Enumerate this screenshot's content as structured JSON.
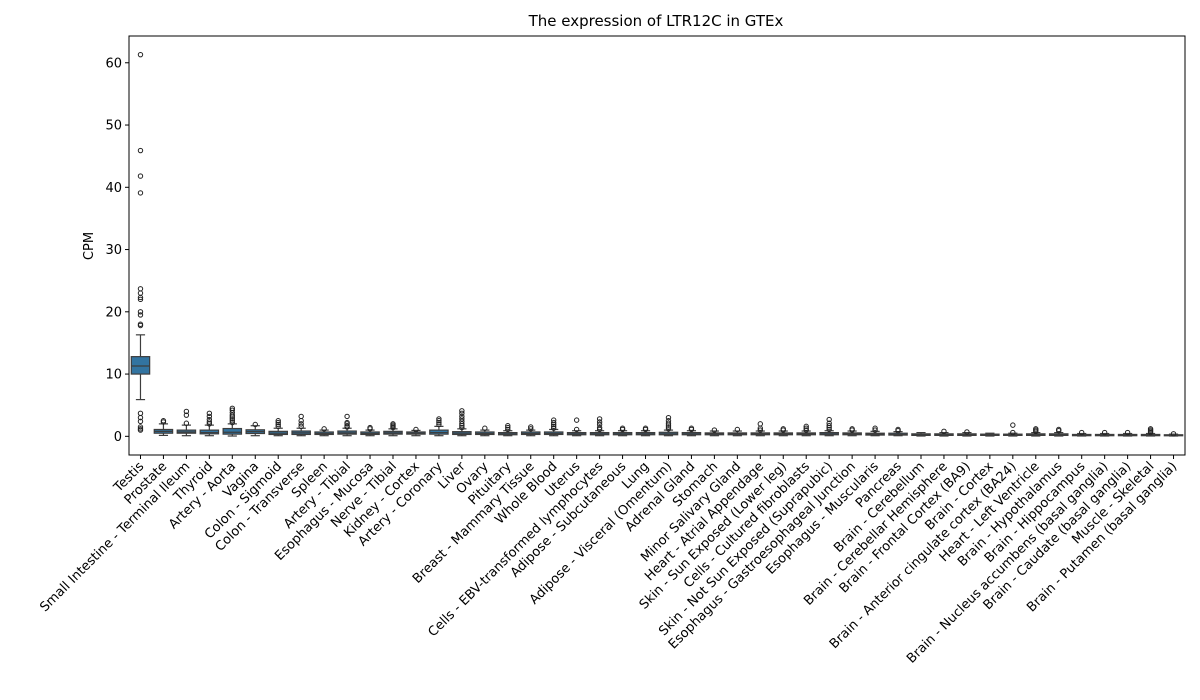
{
  "chart_data": {
    "type": "box",
    "title": "The expression of LTR12C in GTEx",
    "xlabel": "",
    "ylabel": "CPM",
    "ylim": [
      -3,
      64.3
    ],
    "yticks": [
      0,
      10,
      20,
      30,
      40,
      50,
      60
    ],
    "box_color": "#3274a1",
    "grid": false,
    "categories": [
      "Testis",
      "Prostate",
      "Small Intestine - Terminal Ileum",
      "Thyroid",
      "Artery - Aorta",
      "Vagina",
      "Colon - Sigmoid",
      "Colon - Transverse",
      "Spleen",
      "Artery - Tibial",
      "Esophagus - Mucosa",
      "Nerve - Tibial",
      "Kidney - Cortex",
      "Artery - Coronary",
      "Liver",
      "Ovary",
      "Pituitary",
      "Breast - Mammary Tissue",
      "Whole Blood",
      "Uterus",
      "Cells - EBV-transformed lymphocytes",
      "Adipose - Subcutaneous",
      "Lung",
      "Adipose - Visceral (Omentum)",
      "Adrenal Gland",
      "Stomach",
      "Minor Salivary Gland",
      "Heart - Atrial Appendage",
      "Skin - Sun Exposed (Lower leg)",
      "Cells - Cultured fibroblasts",
      "Skin - Not Sun Exposed (Suprapubic)",
      "Esophagus - Gastroesophageal Junction",
      "Esophagus - Muscularis",
      "Pancreas",
      "Brain - Cerebellum",
      "Brain - Cerebellar Hemisphere",
      "Brain - Frontal Cortex (BA9)",
      "Brain - Cortex",
      "Brain - Anterior cingulate cortex (BA24)",
      "Heart - Left Ventricle",
      "Brain - Hypothalamus",
      "Brain - Hippocampus",
      "Brain - Nucleus accumbens (basal ganglia)",
      "Brain - Caudate (basal ganglia)",
      "Muscle - Skeletal",
      "Brain - Putamen (basal ganglia)"
    ],
    "boxes": [
      {
        "whislo": 5.9,
        "q1": 10.0,
        "med": 11.3,
        "q3": 12.8,
        "whishi": 16.3,
        "fliers": [
          61.3,
          45.9,
          41.8,
          39.1,
          23.7,
          23.0,
          22.3,
          22.0,
          20.0,
          19.5,
          18.0,
          17.8,
          3.7,
          3.0,
          2.4,
          1.5,
          1.2,
          1.0
        ]
      },
      {
        "whislo": 0.15,
        "q1": 0.5,
        "med": 0.8,
        "q3": 1.1,
        "whishi": 2.0,
        "fliers": [
          2.3,
          2.5
        ]
      },
      {
        "whislo": 0.1,
        "q1": 0.5,
        "med": 0.7,
        "q3": 1.0,
        "whishi": 1.8,
        "fliers": [
          2.1,
          3.4,
          4.0
        ]
      },
      {
        "whislo": 0.1,
        "q1": 0.4,
        "med": 0.6,
        "q3": 1.0,
        "whishi": 1.8,
        "fliers": [
          2.0,
          2.3,
          2.7,
          3.2,
          3.7
        ]
      },
      {
        "whislo": 0.05,
        "q1": 0.35,
        "med": 0.65,
        "q3": 1.25,
        "whishi": 2.0,
        "fliers": [
          2.2,
          2.5,
          2.8,
          3.1,
          3.4,
          3.8,
          4.2,
          4.5
        ]
      },
      {
        "whislo": 0.1,
        "q1": 0.45,
        "med": 0.75,
        "q3": 1.05,
        "whishi": 1.7,
        "fliers": [
          1.9
        ]
      },
      {
        "whislo": 0.1,
        "q1": 0.3,
        "med": 0.5,
        "q3": 0.8,
        "whishi": 1.3,
        "fliers": [
          1.6,
          1.9,
          2.2,
          2.5
        ]
      },
      {
        "whislo": 0.1,
        "q1": 0.3,
        "med": 0.55,
        "q3": 0.85,
        "whishi": 1.3,
        "fliers": [
          1.6,
          2.0,
          2.5,
          3.2
        ]
      },
      {
        "whislo": 0.1,
        "q1": 0.3,
        "med": 0.45,
        "q3": 0.7,
        "whishi": 1.0,
        "fliers": [
          1.2
        ]
      },
      {
        "whislo": 0.1,
        "q1": 0.35,
        "med": 0.55,
        "q3": 0.85,
        "whishi": 1.3,
        "fliers": [
          1.5,
          1.7,
          2.0,
          2.2,
          3.2
        ]
      },
      {
        "whislo": 0.1,
        "q1": 0.3,
        "med": 0.45,
        "q3": 0.7,
        "whishi": 1.0,
        "fliers": [
          1.2,
          1.4
        ]
      },
      {
        "whislo": 0.1,
        "q1": 0.35,
        "med": 0.55,
        "q3": 0.8,
        "whishi": 1.2,
        "fliers": [
          1.4,
          1.6,
          1.8,
          2.0
        ]
      },
      {
        "whislo": 0.1,
        "q1": 0.35,
        "med": 0.5,
        "q3": 0.7,
        "whishi": 0.95,
        "fliers": [
          1.1
        ]
      },
      {
        "whislo": 0.1,
        "q1": 0.35,
        "med": 0.6,
        "q3": 1.0,
        "whishi": 1.6,
        "fliers": [
          1.9,
          2.2,
          2.5,
          2.8
        ]
      },
      {
        "whislo": 0.1,
        "q1": 0.3,
        "med": 0.5,
        "q3": 0.75,
        "whishi": 1.2,
        "fliers": [
          1.4,
          1.7,
          2.0,
          2.4,
          2.8,
          3.2,
          3.7,
          4.1
        ]
      },
      {
        "whislo": 0.1,
        "q1": 0.3,
        "med": 0.45,
        "q3": 0.7,
        "whishi": 1.0,
        "fliers": [
          1.3
        ]
      },
      {
        "whislo": 0.1,
        "q1": 0.25,
        "med": 0.4,
        "q3": 0.6,
        "whishi": 0.9,
        "fliers": [
          1.1,
          1.4,
          1.7
        ]
      },
      {
        "whislo": 0.1,
        "q1": 0.3,
        "med": 0.45,
        "q3": 0.7,
        "whishi": 1.0,
        "fliers": [
          1.2,
          1.5
        ]
      },
      {
        "whislo": 0.1,
        "q1": 0.3,
        "med": 0.45,
        "q3": 0.7,
        "whishi": 1.1,
        "fliers": [
          1.3,
          1.6,
          1.9,
          2.2,
          2.6
        ]
      },
      {
        "whislo": 0.1,
        "q1": 0.25,
        "med": 0.4,
        "q3": 0.6,
        "whishi": 0.9,
        "fliers": [
          1.1,
          2.6
        ]
      },
      {
        "whislo": 0.1,
        "q1": 0.25,
        "med": 0.4,
        "q3": 0.6,
        "whishi": 0.9,
        "fliers": [
          1.1,
          1.4,
          1.9,
          2.3,
          2.8
        ]
      },
      {
        "whislo": 0.1,
        "q1": 0.25,
        "med": 0.4,
        "q3": 0.6,
        "whishi": 0.9,
        "fliers": [
          1.1,
          1.3
        ]
      },
      {
        "whislo": 0.1,
        "q1": 0.25,
        "med": 0.4,
        "q3": 0.6,
        "whishi": 0.9,
        "fliers": [
          1.1,
          1.3
        ]
      },
      {
        "whislo": 0.1,
        "q1": 0.25,
        "med": 0.4,
        "q3": 0.65,
        "whishi": 1.0,
        "fliers": [
          1.2,
          1.5,
          1.8,
          2.1,
          2.5,
          3.0
        ]
      },
      {
        "whislo": 0.1,
        "q1": 0.25,
        "med": 0.4,
        "q3": 0.6,
        "whishi": 0.9,
        "fliers": [
          1.1,
          1.3
        ]
      },
      {
        "whislo": 0.1,
        "q1": 0.25,
        "med": 0.4,
        "q3": 0.55,
        "whishi": 0.85,
        "fliers": [
          1.0
        ]
      },
      {
        "whislo": 0.1,
        "q1": 0.25,
        "med": 0.4,
        "q3": 0.55,
        "whishi": 0.85,
        "fliers": [
          1.1
        ]
      },
      {
        "whislo": 0.1,
        "q1": 0.25,
        "med": 0.35,
        "q3": 0.55,
        "whishi": 0.85,
        "fliers": [
          1.0,
          1.3,
          2.0
        ]
      },
      {
        "whislo": 0.1,
        "q1": 0.25,
        "med": 0.35,
        "q3": 0.55,
        "whishi": 0.85,
        "fliers": [
          1.0,
          1.2
        ]
      },
      {
        "whislo": 0.1,
        "q1": 0.25,
        "med": 0.35,
        "q3": 0.55,
        "whishi": 0.85,
        "fliers": [
          1.0,
          1.3,
          1.6
        ]
      },
      {
        "whislo": 0.1,
        "q1": 0.25,
        "med": 0.4,
        "q3": 0.6,
        "whishi": 0.9,
        "fliers": [
          1.1,
          1.4,
          1.7,
          2.1,
          2.7
        ]
      },
      {
        "whislo": 0.1,
        "q1": 0.25,
        "med": 0.35,
        "q3": 0.55,
        "whishi": 0.85,
        "fliers": [
          1.0,
          1.2
        ]
      },
      {
        "whislo": 0.1,
        "q1": 0.2,
        "med": 0.35,
        "q3": 0.5,
        "whishi": 0.8,
        "fliers": [
          1.0,
          1.3
        ]
      },
      {
        "whislo": 0.1,
        "q1": 0.2,
        "med": 0.3,
        "q3": 0.5,
        "whishi": 0.75,
        "fliers": [
          0.9,
          1.1
        ]
      },
      {
        "whislo": 0.05,
        "q1": 0.15,
        "med": 0.25,
        "q3": 0.4,
        "whishi": 0.6,
        "fliers": []
      },
      {
        "whislo": 0.05,
        "q1": 0.15,
        "med": 0.25,
        "q3": 0.4,
        "whishi": 0.6,
        "fliers": [
          0.8
        ]
      },
      {
        "whislo": 0.05,
        "q1": 0.15,
        "med": 0.25,
        "q3": 0.4,
        "whishi": 0.6,
        "fliers": [
          0.7
        ]
      },
      {
        "whislo": 0.05,
        "q1": 0.15,
        "med": 0.2,
        "q3": 0.35,
        "whishi": 0.5,
        "fliers": []
      },
      {
        "whislo": 0.05,
        "q1": 0.15,
        "med": 0.2,
        "q3": 0.35,
        "whishi": 0.5,
        "fliers": [
          0.6,
          1.8
        ]
      },
      {
        "whislo": 0.05,
        "q1": 0.15,
        "med": 0.25,
        "q3": 0.4,
        "whishi": 0.6,
        "fliers": [
          0.8,
          1.0,
          1.2
        ]
      },
      {
        "whislo": 0.05,
        "q1": 0.15,
        "med": 0.25,
        "q3": 0.4,
        "whishi": 0.6,
        "fliers": [
          0.9,
          1.1
        ]
      },
      {
        "whislo": 0.05,
        "q1": 0.1,
        "med": 0.2,
        "q3": 0.3,
        "whishi": 0.45,
        "fliers": [
          0.6
        ]
      },
      {
        "whislo": 0.05,
        "q1": 0.1,
        "med": 0.2,
        "q3": 0.3,
        "whishi": 0.45,
        "fliers": [
          0.6
        ]
      },
      {
        "whislo": 0.05,
        "q1": 0.1,
        "med": 0.2,
        "q3": 0.3,
        "whishi": 0.45,
        "fliers": [
          0.6
        ]
      },
      {
        "whislo": 0.05,
        "q1": 0.1,
        "med": 0.2,
        "q3": 0.3,
        "whishi": 0.45,
        "fliers": [
          0.6,
          0.8,
          1.0,
          1.2
        ]
      },
      {
        "whislo": 0.05,
        "q1": 0.1,
        "med": 0.15,
        "q3": 0.25,
        "whishi": 0.35,
        "fliers": [
          0.4
        ]
      }
    ]
  }
}
